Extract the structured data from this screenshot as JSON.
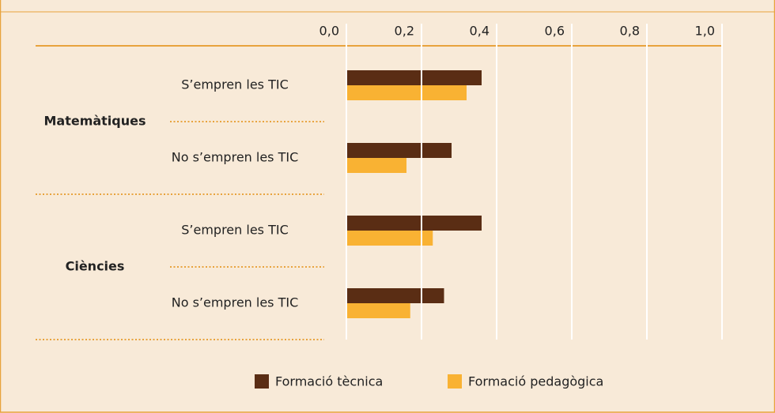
{
  "chart_data": {
    "type": "bar",
    "orientation": "horizontal",
    "groups": [
      "Matemàtiques",
      "Ciències"
    ],
    "categories": [
      "S’empren les TIC",
      "No s’empren les TIC",
      "S’empren les TIC",
      "No s’empren les TIC"
    ],
    "series": [
      {
        "name": "Formació tècnica",
        "color": "#5a2d14",
        "values": [
          0.36,
          0.28,
          0.36,
          0.26
        ]
      },
      {
        "name": "Formació pedagògica",
        "color": "#f9b233",
        "values": [
          0.32,
          0.16,
          0.23,
          0.17
        ]
      }
    ],
    "xlim": [
      0,
      1
    ],
    "xticks": [
      {
        "value": 0,
        "label": "0,0"
      },
      {
        "value": 0.2,
        "label": "0,2"
      },
      {
        "value": 0.4,
        "label": "0,4"
      },
      {
        "value": 0.6,
        "label": "0,6"
      },
      {
        "value": 0.8,
        "label": "0,8"
      },
      {
        "value": 1,
        "label": "1,0"
      }
    ],
    "grid": true,
    "legend": "bottom"
  }
}
